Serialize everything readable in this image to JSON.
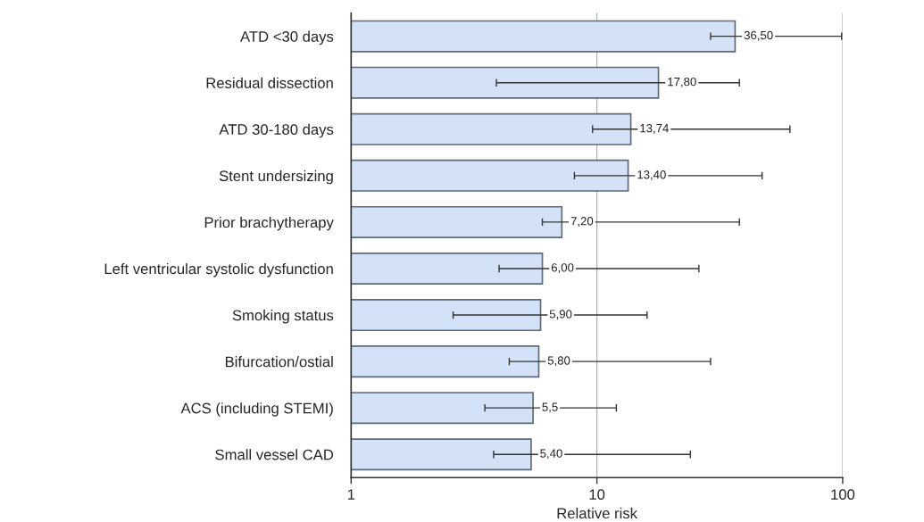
{
  "chart_data": {
    "type": "bar",
    "orientation": "horizontal",
    "log": "x",
    "xlabel": "Relative risk",
    "categories": [
      "ATD <30 days",
      "Residual dissection",
      "ATD 30-180 days",
      "Stent undersizing",
      "Prior brachytherapy",
      "Left ventricular systolic dysfunction",
      "Smoking status",
      "Bifurcation/ostial",
      "ACS (including STEMI)",
      "Small vessel CAD"
    ],
    "values": [
      36.5,
      17.8,
      13.74,
      13.4,
      7.2,
      6.0,
      5.9,
      5.8,
      5.5,
      5.4
    ],
    "value_labels": [
      "36,50",
      "17,80",
      "13,74",
      "13,40",
      "7,20",
      "6,00",
      "5,90",
      "5,80",
      "5,5",
      "5,40"
    ],
    "errors": [
      [
        29,
        99
      ],
      [
        3.9,
        38
      ],
      [
        9.6,
        61
      ],
      [
        8.1,
        47
      ],
      [
        6.0,
        38
      ],
      [
        4.0,
        26
      ],
      [
        2.6,
        16
      ],
      [
        4.4,
        29
      ],
      [
        3.5,
        12
      ],
      [
        3.8,
        24
      ]
    ],
    "color": "#d3e2f7",
    "xlim": [
      1,
      100
    ],
    "xticks": [
      1,
      10,
      100
    ],
    "grid": "x"
  }
}
